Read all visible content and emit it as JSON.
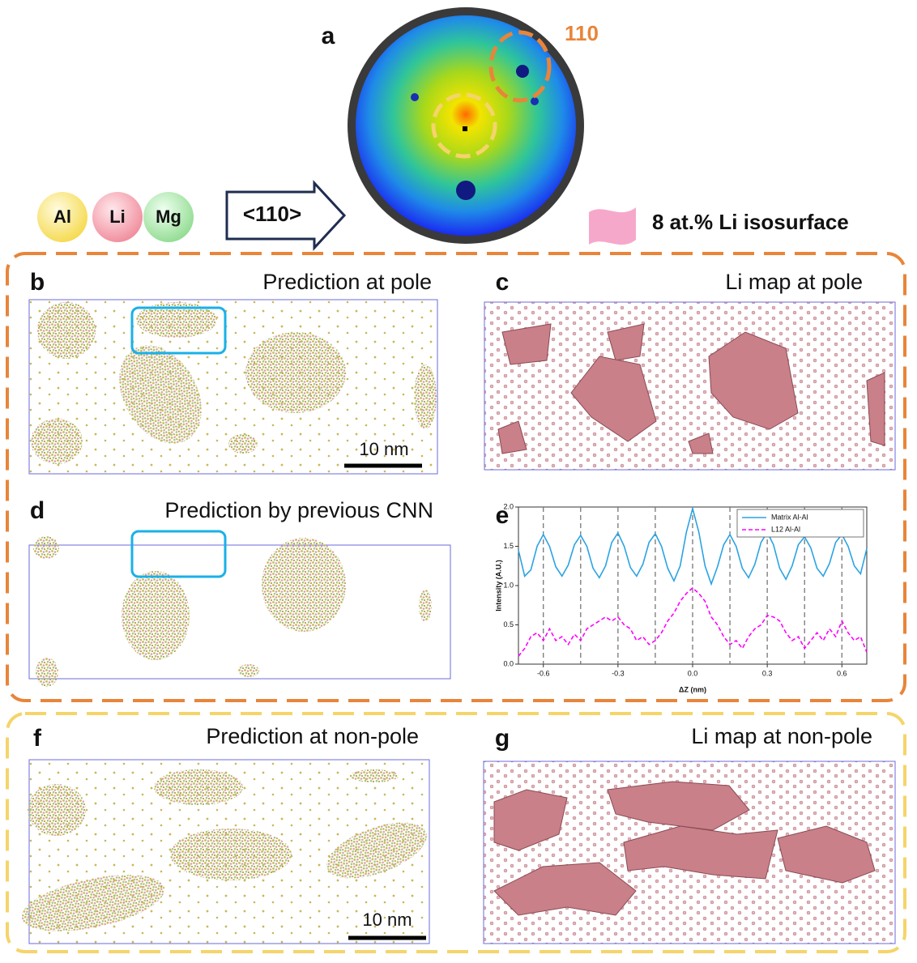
{
  "panel_a": {
    "label": "a",
    "pole_label": "110"
  },
  "legend_elements": {
    "items": [
      "Al",
      "Li",
      "Mg"
    ],
    "direction": "<110>",
    "isosurface": "8 at.% Li isosurface"
  },
  "panels": [
    {
      "label": "b",
      "title": "Prediction at pole",
      "scale_bar": "10 nm"
    },
    {
      "label": "c",
      "title": "Li map at pole"
    },
    {
      "label": "d",
      "title": "Prediction by previous CNN"
    },
    {
      "label": "e"
    },
    {
      "label": "f",
      "title": "Prediction at non-pole",
      "scale_bar": "10 nm"
    },
    {
      "label": "g",
      "title": "Li map at non-pole"
    }
  ],
  "chart_data": {
    "type": "line",
    "xlabel": "ΔZ (nm)",
    "ylabel": "Intensity (A.U.)",
    "xlim": [
      -0.7,
      0.7
    ],
    "ylim": [
      0,
      2
    ],
    "xticks": [
      -0.6,
      -0.3,
      {
        "value": 0,
        "label": "0.0"
      },
      0.3,
      0.6
    ],
    "yticks": [
      {
        "value": 0,
        "label": "0.0"
      },
      0.5,
      {
        "value": 1,
        "label": "1.0"
      },
      1.5,
      {
        "value": 2,
        "label": "2.0"
      }
    ],
    "reference_lines": [
      -0.6,
      -0.45,
      -0.3,
      -0.15,
      0,
      0.15,
      0.3,
      0.45,
      0.6
    ],
    "legend": "upper right",
    "x": [
      -0.7,
      -0.675,
      -0.65,
      -0.625,
      -0.6,
      -0.575,
      -0.55,
      -0.525,
      -0.5,
      -0.475,
      -0.45,
      -0.425,
      -0.4,
      -0.375,
      -0.35,
      -0.325,
      -0.3,
      -0.275,
      -0.25,
      -0.225,
      -0.2,
      -0.175,
      -0.15,
      -0.125,
      -0.1,
      -0.075,
      -0.05,
      -0.025,
      0,
      0.025,
      0.05,
      0.075,
      0.1,
      0.125,
      0.15,
      0.175,
      0.2,
      0.225,
      0.25,
      0.275,
      0.3,
      0.325,
      0.35,
      0.375,
      0.4,
      0.425,
      0.45,
      0.475,
      0.5,
      0.525,
      0.55,
      0.575,
      0.6,
      0.625,
      0.65,
      0.675,
      0.7
    ],
    "series": [
      {
        "name": "Matrix Al-Al",
        "color": "#2ba3e3",
        "line_style": "solid",
        "values": [
          1.45,
          1.12,
          1.2,
          1.5,
          1.65,
          1.5,
          1.24,
          1.12,
          1.26,
          1.52,
          1.64,
          1.5,
          1.22,
          1.1,
          1.25,
          1.55,
          1.67,
          1.5,
          1.23,
          1.12,
          1.27,
          1.55,
          1.66,
          1.5,
          1.22,
          1.06,
          1.25,
          1.68,
          1.98,
          1.68,
          1.25,
          1.02,
          1.24,
          1.52,
          1.65,
          1.5,
          1.22,
          1.1,
          1.27,
          1.55,
          1.68,
          1.52,
          1.22,
          1.08,
          1.25,
          1.52,
          1.62,
          1.48,
          1.22,
          1.12,
          1.28,
          1.55,
          1.65,
          1.5,
          1.25,
          1.15,
          1.47
        ]
      },
      {
        "name": "L12 Al-Al",
        "color": "#ff00ff",
        "line_style": "dashed",
        "values": [
          0.1,
          0.2,
          0.35,
          0.4,
          0.3,
          0.45,
          0.3,
          0.35,
          0.25,
          0.38,
          0.3,
          0.45,
          0.5,
          0.55,
          0.6,
          0.55,
          0.6,
          0.5,
          0.45,
          0.3,
          0.35,
          0.25,
          0.3,
          0.4,
          0.55,
          0.65,
          0.8,
          0.9,
          0.97,
          0.9,
          0.8,
          0.6,
          0.5,
          0.35,
          0.25,
          0.3,
          0.2,
          0.35,
          0.45,
          0.5,
          0.62,
          0.6,
          0.55,
          0.4,
          0.3,
          0.35,
          0.2,
          0.3,
          0.4,
          0.3,
          0.45,
          0.35,
          0.55,
          0.4,
          0.3,
          0.35,
          0.15
        ]
      }
    ]
  }
}
